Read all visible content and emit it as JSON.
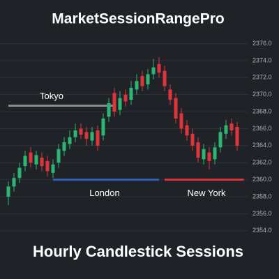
{
  "chart_data": {
    "type": "candlestick",
    "title": "MarketSessionRangePro",
    "subtitle": "Hourly Candlestick Sessions",
    "ylim": [
      2353,
      2377.6
    ],
    "yticks": [
      {
        "value": 2354,
        "label": "2354.0"
      },
      {
        "value": 2356,
        "label": "2356.0"
      },
      {
        "value": 2358,
        "label": "2358.0"
      },
      {
        "value": 2360,
        "label": "2360.0"
      },
      {
        "value": 2362,
        "label": "2362.0"
      },
      {
        "value": 2364,
        "label": "2364.0"
      },
      {
        "value": 2366,
        "label": "2366.0"
      },
      {
        "value": 2368,
        "label": "2368.0"
      },
      {
        "value": 2370,
        "label": "2370.0"
      },
      {
        "value": 2372,
        "label": "2372.0"
      },
      {
        "value": 2374,
        "label": "2374.0"
      },
      {
        "value": 2376,
        "label": "2376.0"
      }
    ],
    "grid": true,
    "up_color": "#2bb673",
    "down_color": "#e0343c",
    "open": [
      2358.0,
      2359.2,
      2360.2,
      2361.6,
      2363.2,
      2361.8,
      2362.6,
      2362.2,
      2360.8,
      2362.0,
      2363.4,
      2364.2,
      2365.0,
      2366.0,
      2365.6,
      2364.6,
      2365.8,
      2365.2,
      2367.4,
      2370.2,
      2368.2,
      2370.0,
      2369.4,
      2370.6,
      2372.2,
      2371.2,
      2372.4,
      2373.6,
      2372.8,
      2370.6,
      2369.6,
      2367.8,
      2366.4,
      2365.4,
      2364.4,
      2362.4,
      2363.2,
      2362.4,
      2363.8,
      2365.4,
      2366.6,
      2366.2
    ],
    "high": [
      2359.8,
      2360.8,
      2362.0,
      2363.4,
      2363.8,
      2363.4,
      2363.2,
      2362.8,
      2362.4,
      2364.2,
      2365.0,
      2365.8,
      2366.6,
      2366.6,
      2366.2,
      2366.2,
      2366.4,
      2367.8,
      2369.6,
      2370.8,
      2370.4,
      2370.6,
      2371.6,
      2372.4,
      2372.8,
      2373.0,
      2374.2,
      2374.4,
      2373.4,
      2371.2,
      2370.2,
      2368.4,
      2367.0,
      2366.0,
      2365.0,
      2364.2,
      2363.8,
      2364.4,
      2366.2,
      2367.0,
      2367.2,
      2366.8
    ],
    "low": [
      2357.0,
      2358.6,
      2359.6,
      2361.0,
      2361.4,
      2361.2,
      2361.0,
      2360.4,
      2360.2,
      2361.4,
      2362.8,
      2363.6,
      2364.4,
      2364.8,
      2364.0,
      2364.0,
      2363.4,
      2364.6,
      2366.8,
      2367.4,
      2367.6,
      2368.6,
      2368.8,
      2370.0,
      2370.4,
      2370.6,
      2371.8,
      2372.0,
      2370.4,
      2368.8,
      2366.6,
      2365.4,
      2364.6,
      2363.4,
      2362.0,
      2361.8,
      2361.2,
      2361.8,
      2363.2,
      2364.8,
      2365.2,
      2363.4
    ],
    "close": [
      2359.2,
      2360.2,
      2361.4,
      2362.8,
      2362.0,
      2362.9,
      2361.6,
      2361.0,
      2361.8,
      2363.6,
      2364.4,
      2365.0,
      2365.8,
      2365.3,
      2364.8,
      2365.6,
      2364.0,
      2367.2,
      2369.0,
      2368.0,
      2369.6,
      2369.2,
      2370.8,
      2371.6,
      2371.0,
      2372.4,
      2373.2,
      2372.6,
      2371.0,
      2369.4,
      2367.2,
      2366.0,
      2365.2,
      2364.0,
      2362.6,
      2363.6,
      2362.2,
      2363.8,
      2365.6,
      2366.4,
      2365.8,
      2364.0
    ],
    "sessions": [
      {
        "name": "Tokyo",
        "level": 2368.7,
        "color": "#8c8c8c"
      },
      {
        "name": "London",
        "level": 2360,
        "color": "#2f5fb8"
      },
      {
        "name": "New York",
        "level": 2360,
        "color": "#d9343a"
      }
    ]
  }
}
